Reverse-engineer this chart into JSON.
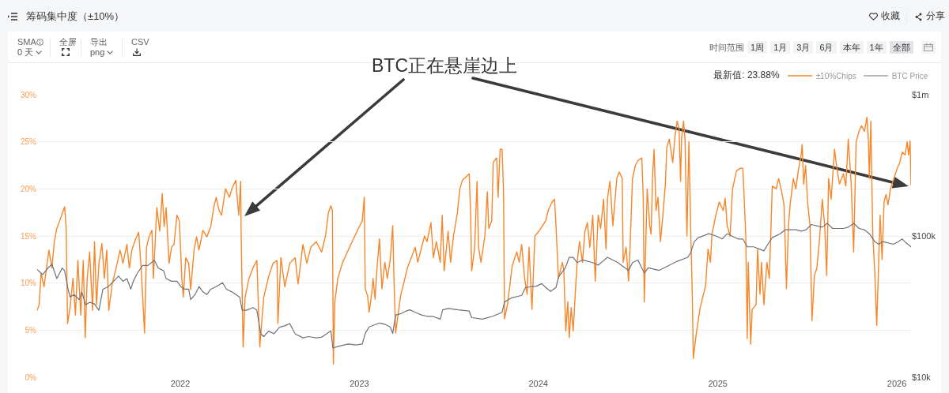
{
  "chart_data": {
    "type": "line",
    "title": "筹码集中度（±10%）",
    "annotations": [
      "BTC正在悬崖边上",
      "最新值: 23.88%",
      "SMA",
      "0 天",
      "全屏",
      "导出",
      "png",
      "CSV",
      "时间范围",
      "1周",
      "1月",
      "3月",
      "6月",
      "本年",
      "1年",
      "全部",
      "收藏",
      "分享"
    ],
    "xlim": [
      "2021-03-15",
      "2026-01-30"
    ],
    "xticks": [
      {
        "value": "2022-01-01",
        "label": "2022"
      },
      {
        "value": "2023-01-01",
        "label": "2023"
      },
      {
        "value": "2024-01-01",
        "label": "2024"
      },
      {
        "value": "2025-01-01",
        "label": "2025"
      },
      {
        "value": "2026-01-01",
        "label": "2026"
      }
    ],
    "ylim": [
      0,
      30
    ],
    "yticks": [
      {
        "value": 0,
        "label": "0%"
      },
      {
        "value": 5,
        "label": "5%"
      },
      {
        "value": 10,
        "label": "10%"
      },
      {
        "value": 15,
        "label": "15%"
      },
      {
        "value": 20,
        "label": "20%"
      },
      {
        "value": 25,
        "label": "25%"
      },
      {
        "value": 30,
        "label": "30%"
      }
    ],
    "y2lim": [
      10000,
      1000000
    ],
    "y2ticks": [
      {
        "value": 10000,
        "label": "$10k"
      },
      {
        "value": 100000,
        "label": "$100k"
      },
      {
        "value": 1000000,
        "label": "$1m"
      }
    ],
    "log": "y2",
    "grid": "y",
    "legend": "top right",
    "series": [
      {
        "name": "±10%Chips",
        "color": "#f5862a",
        "x": [
          "2021-03-15",
          "2021-03-19",
          "2021-03-23",
          "2021-03-29",
          "2021-04-03",
          "2021-04-08",
          "2021-04-14",
          "2021-04-19",
          "2021-04-24",
          "2021-05-02",
          "2021-05-10",
          "2021-05-13",
          "2021-05-16",
          "2021-05-21",
          "2021-05-27",
          "2021-06-01",
          "2021-06-06",
          "2021-06-12",
          "2021-06-17",
          "2021-06-21",
          "2021-06-25",
          "2021-06-30",
          "2021-07-06",
          "2021-07-10",
          "2021-07-14",
          "2021-07-19",
          "2021-07-25",
          "2021-07-30",
          "2021-08-04",
          "2021-08-08",
          "2021-08-15",
          "2021-08-23",
          "2021-08-31",
          "2021-09-06",
          "2021-09-14",
          "2021-09-19",
          "2021-09-24",
          "2021-10-02",
          "2021-10-08",
          "2021-10-13",
          "2021-10-20",
          "2021-10-24",
          "2021-10-29",
          "2021-11-04",
          "2021-11-07",
          "2021-11-14",
          "2021-11-20",
          "2021-11-25",
          "2021-11-29",
          "2021-12-03",
          "2021-12-09",
          "2021-12-14",
          "2021-12-19",
          "2021-12-25",
          "2021-12-30",
          "2022-01-04",
          "2022-01-07",
          "2022-01-12",
          "2022-01-18",
          "2022-01-22",
          "2022-01-29",
          "2022-02-03",
          "2022-02-08",
          "2022-02-16",
          "2022-02-24",
          "2022-03-04",
          "2022-03-10",
          "2022-03-15",
          "2022-03-21",
          "2022-03-26",
          "2022-04-03",
          "2022-04-11",
          "2022-04-16",
          "2022-04-24",
          "2022-04-30",
          "2022-05-04",
          "2022-05-05",
          "2022-05-09",
          "2022-05-13",
          "2022-05-21",
          "2022-05-29",
          "2022-06-06",
          "2022-06-12",
          "2022-06-20",
          "2022-06-30",
          "2022-07-09",
          "2022-07-17",
          "2022-07-19",
          "2022-07-25",
          "2022-08-02",
          "2022-08-12",
          "2022-08-23",
          "2022-08-29",
          "2022-09-08",
          "2022-09-16",
          "2022-09-24",
          "2022-10-05",
          "2022-10-16",
          "2022-10-24",
          "2022-10-30",
          "2022-11-04",
          "2022-11-07",
          "2022-11-09",
          "2022-11-12",
          "2022-11-18",
          "2022-11-28",
          "2022-12-12",
          "2022-12-30",
          "2023-01-07",
          "2023-01-11",
          "2023-01-13",
          "2023-01-18",
          "2023-01-21",
          "2023-01-26",
          "2023-01-29",
          "2023-02-02",
          "2023-02-06",
          "2023-02-11",
          "2023-02-16",
          "2023-02-22",
          "2023-02-27",
          "2023-03-05",
          "2023-03-10",
          "2023-03-13",
          "2023-03-16",
          "2023-03-26",
          "2023-04-09",
          "2023-04-25",
          "2023-04-30",
          "2023-05-14",
          "2023-05-19",
          "2023-05-27",
          "2023-06-01",
          "2023-06-07",
          "2023-06-15",
          "2023-06-19",
          "2023-06-23",
          "2023-07-01",
          "2023-07-06",
          "2023-07-12",
          "2023-07-20",
          "2023-07-25",
          "2023-07-30",
          "2023-08-13",
          "2023-08-16",
          "2023-08-18",
          "2023-08-24",
          "2023-08-29",
          "2023-09-01",
          "2023-09-06",
          "2023-09-14",
          "2023-09-19",
          "2023-09-22",
          "2023-09-28",
          "2023-10-01",
          "2023-10-08",
          "2023-10-11",
          "2023-10-15",
          "2023-10-19",
          "2023-10-22",
          "2023-10-24",
          "2023-10-30",
          "2023-11-09",
          "2023-11-18",
          "2023-11-23",
          "2023-11-28",
          "2023-12-04",
          "2023-12-09",
          "2023-12-13",
          "2023-12-19",
          "2023-12-25",
          "2024-01-02",
          "2024-01-16",
          "2024-01-21",
          "2024-01-29",
          "2024-02-03",
          "2024-02-06",
          "2024-02-11",
          "2024-02-19",
          "2024-02-22",
          "2024-02-26",
          "2024-03-01",
          "2024-03-04",
          "2024-03-08",
          "2024-03-12",
          "2024-03-20",
          "2024-03-25",
          "2024-03-31",
          "2024-04-05",
          "2024-04-10",
          "2024-04-15",
          "2024-04-21",
          "2024-04-26",
          "2024-05-02",
          "2024-05-07",
          "2024-05-13",
          "2024-05-18",
          "2024-05-21",
          "2024-05-26",
          "2024-06-01",
          "2024-06-09",
          "2024-06-14",
          "2024-06-20",
          "2024-06-22",
          "2024-06-28",
          "2024-07-03",
          "2024-07-06",
          "2024-07-11",
          "2024-07-17",
          "2024-07-22",
          "2024-07-30",
          "2024-08-02",
          "2024-08-04",
          "2024-08-10",
          "2024-08-15",
          "2024-08-18",
          "2024-08-21",
          "2024-08-24",
          "2024-08-28",
          "2024-09-01",
          "2024-09-06",
          "2024-09-11",
          "2024-09-16",
          "2024-09-19",
          "2024-09-24",
          "2024-10-01",
          "2024-10-06",
          "2024-10-10",
          "2024-10-14",
          "2024-10-17",
          "2024-10-19",
          "2024-10-23",
          "2024-10-26",
          "2024-10-30",
          "2024-11-03",
          "2024-11-07",
          "2024-11-10",
          "2024-11-12",
          "2024-11-18",
          "2024-11-26",
          "2024-12-07",
          "2024-12-12",
          "2024-12-17",
          "2024-12-20",
          "2024-12-28",
          "2025-01-04",
          "2025-01-12",
          "2025-01-16",
          "2025-01-20",
          "2025-01-26",
          "2025-01-31",
          "2025-02-08",
          "2025-02-16",
          "2025-02-21",
          "2025-02-27",
          "2025-03-02",
          "2025-03-04",
          "2025-03-09",
          "2025-03-12",
          "2025-03-20",
          "2025-03-23",
          "2025-03-28",
          "2025-03-31",
          "2025-04-05",
          "2025-04-11",
          "2025-04-16",
          "2025-04-19",
          "2025-04-22",
          "2025-04-30",
          "2025-05-05",
          "2025-05-10",
          "2025-05-16",
          "2025-05-21",
          "2025-05-25",
          "2025-05-29",
          "2025-06-04",
          "2025-06-09",
          "2025-06-14",
          "2025-06-20",
          "2025-06-22",
          "2025-06-25",
          "2025-06-29",
          "2025-07-03",
          "2025-07-08",
          "2025-07-12",
          "2025-07-17",
          "2025-07-22",
          "2025-07-27",
          "2025-08-02",
          "2025-08-07",
          "2025-08-11",
          "2025-08-15",
          "2025-08-20",
          "2025-08-27",
          "2025-08-31",
          "2025-09-06",
          "2025-09-14",
          "2025-09-19",
          "2025-09-24",
          "2025-09-30",
          "2025-10-05",
          "2025-10-10",
          "2025-10-16",
          "2025-10-21",
          "2025-10-27",
          "2025-11-01",
          "2025-11-04",
          "2025-11-06",
          "2025-11-09",
          "2025-11-13",
          "2025-11-17",
          "2025-11-21",
          "2025-11-25",
          "2025-11-28",
          "2025-12-02",
          "2025-12-06",
          "2025-12-10",
          "2025-12-14",
          "2025-12-19",
          "2026-01-02",
          "2026-01-07",
          "2026-01-12",
          "2026-01-18",
          "2026-01-22",
          "2026-01-25",
          "2026-01-28",
          "2026-01-30"
        ],
        "values": [
          7.1,
          7.7,
          11.0,
          9.6,
          11.6,
          13.5,
          11.6,
          14.4,
          15.8,
          16.9,
          18.1,
          16.0,
          5.7,
          7.4,
          10.5,
          6.6,
          12.4,
          6.6,
          12.4,
          4.2,
          10.5,
          13.3,
          7.1,
          14.4,
          7.7,
          12.1,
          14.2,
          10.5,
          13.5,
          7.1,
          9.9,
          11.6,
          13.5,
          12.1,
          14.1,
          11.6,
          13.5,
          14.7,
          15.4,
          11.6,
          4.7,
          13.8,
          14.9,
          15.6,
          10.5,
          18.0,
          15.5,
          19.5,
          16.0,
          18.0,
          12.1,
          13.8,
          14.1,
          17.2,
          16.6,
          10.5,
          8.5,
          12.7,
          12.1,
          9.3,
          13.5,
          14.9,
          13.5,
          15.6,
          14.9,
          16.0,
          18.0,
          19.1,
          17.7,
          17.2,
          20.0,
          19.1,
          20.0,
          20.9,
          17.2,
          20.8,
          14.9,
          3.2,
          8.5,
          10.5,
          11.6,
          12.4,
          3.2,
          8.5,
          10.7,
          12.1,
          12.4,
          5.7,
          12.7,
          9.6,
          12.1,
          12.7,
          9.9,
          14.1,
          12.1,
          13.8,
          14.4,
          13.3,
          15.0,
          17.5,
          18.2,
          17.7,
          1.4,
          8.0,
          10.5,
          12.2,
          13.8,
          15.8,
          16.6,
          19.1,
          9.4,
          8.6,
          6.9,
          8.8,
          10.5,
          8.3,
          11.6,
          14.7,
          9.4,
          12.2,
          10.5,
          12.5,
          16.1,
          9.7,
          4.7,
          8.6,
          11.6,
          13.8,
          12.2,
          15.0,
          14.4,
          16.4,
          12.7,
          14.4,
          12.2,
          17.2,
          11.3,
          15.5,
          12.2,
          15.0,
          17.5,
          20.0,
          20.9,
          21.6,
          17.2,
          11.3,
          13.6,
          20.8,
          13.8,
          12.2,
          15.0,
          19.7,
          15.8,
          16.6,
          22.8,
          23.3,
          19.1,
          24.2,
          24.2,
          19.7,
          6.2,
          7.7,
          11.9,
          13.3,
          12.2,
          14.1,
          10.5,
          8.8,
          13.8,
          7.2,
          15.0,
          15.5,
          16.6,
          17.7,
          18.6,
          18.9,
          16.1,
          10.5,
          12.2,
          11.3,
          4.9,
          8.0,
          4.2,
          7.4,
          4.9,
          12.2,
          14.4,
          12.2,
          15.5,
          16.4,
          13.8,
          17.2,
          10.2,
          17.2,
          15.8,
          18.9,
          13.6,
          19.0,
          20.8,
          16.1,
          21.1,
          21.8,
          21.1,
          12.2,
          13.8,
          10.2,
          13.8,
          21.1,
          22.5,
          23.0,
          23.3,
          18.9,
          8.0,
          20.0,
          16.1,
          15.2,
          21.4,
          24.2,
          17.7,
          19.1,
          14.4,
          17.2,
          20.5,
          24.4,
          25.3,
          22.8,
          25.7,
          27.2,
          26.4,
          20.8,
          25.3,
          27.2,
          25.3,
          15.0,
          25.0,
          15.0,
          8.6,
          2.0,
          4.6,
          7.4,
          9.7,
          13.6,
          12.2,
          15.2,
          17.2,
          18.6,
          17.7,
          19.0,
          16.1,
          15.0,
          20.0,
          21.9,
          22.2,
          22.2,
          15.0,
          4.1,
          12.2,
          3.5,
          7.2,
          7.7,
          13.6,
          8.8,
          12.2,
          7.7,
          12.2,
          10.5,
          15.2,
          20.3,
          20.0,
          21.1,
          20.0,
          18.3,
          9.4,
          16.1,
          18.6,
          21.1,
          20.0,
          21.9,
          23.6,
          24.7,
          20.5,
          22.5,
          18.6,
          16.1,
          6.0,
          10.8,
          11.6,
          14.4,
          18.9,
          16.1,
          10.8,
          21.1,
          18.9,
          24.2,
          22.5,
          20.5,
          21.6,
          20.3,
          25.3,
          20.5,
          13.3,
          25.0,
          26.1,
          26.7,
          26.1,
          27.6,
          25.3,
          21.1,
          27.2,
          15.0,
          11.3,
          5.5,
          12.2,
          17.2,
          12.5,
          18.6,
          19.4,
          18.3,
          20.0,
          22.2,
          22.8,
          23.9,
          23.6,
          25.0,
          23.6,
          25.1,
          20.4
        ]
      },
      {
        "name": "BTC Price",
        "color": "#6e7179",
        "axis": "y2",
        "x": [
          "2021-03-15",
          "2021-03-26",
          "2021-04-06",
          "2021-04-14",
          "2021-04-24",
          "2021-05-05",
          "2021-05-10",
          "2021-05-17",
          "2021-05-21",
          "2021-05-29",
          "2021-06-09",
          "2021-06-14",
          "2021-06-22",
          "2021-06-30",
          "2021-07-09",
          "2021-07-19",
          "2021-07-27",
          "2021-08-07",
          "2021-08-18",
          "2021-08-28",
          "2021-09-06",
          "2021-09-14",
          "2021-09-22",
          "2021-09-27",
          "2021-10-05",
          "2021-10-16",
          "2021-10-27",
          "2021-11-09",
          "2021-11-17",
          "2021-11-28",
          "2021-12-03",
          "2021-12-14",
          "2021-12-25",
          "2022-01-02",
          "2022-01-10",
          "2022-01-18",
          "2022-01-22",
          "2022-01-31",
          "2022-02-08",
          "2022-02-16",
          "2022-02-24",
          "2022-03-04",
          "2022-03-15",
          "2022-03-28",
          "2022-04-05",
          "2022-04-16",
          "2022-05-02",
          "2022-05-07",
          "2022-05-16",
          "2022-05-29",
          "2022-06-06",
          "2022-06-14",
          "2022-06-20",
          "2022-06-30",
          "2022-07-11",
          "2022-07-22",
          "2022-08-02",
          "2022-08-12",
          "2022-08-23",
          "2022-09-08",
          "2022-09-19",
          "2022-10-05",
          "2022-10-16",
          "2022-11-04",
          "2022-11-08",
          "2022-11-18",
          "2022-12-09",
          "2022-12-25",
          "2023-01-07",
          "2023-01-13",
          "2023-01-21",
          "2023-02-11",
          "2023-02-22",
          "2023-03-05",
          "2023-03-10",
          "2023-03-16",
          "2023-03-26",
          "2023-04-06",
          "2023-04-14",
          "2023-04-25",
          "2023-05-08",
          "2023-05-19",
          "2023-05-30",
          "2023-06-15",
          "2023-06-20",
          "2023-07-01",
          "2023-07-22",
          "2023-08-13",
          "2023-08-18",
          "2023-09-09",
          "2023-09-30",
          "2023-10-19",
          "2023-10-24",
          "2023-11-07",
          "2023-11-28",
          "2023-12-06",
          "2023-12-28",
          "2024-01-08",
          "2024-01-16",
          "2024-01-26",
          "2024-02-06",
          "2024-02-11",
          "2024-02-25",
          "2024-03-04",
          "2024-03-12",
          "2024-03-20",
          "2024-03-31",
          "2024-04-21",
          "2024-05-02",
          "2024-05-21",
          "2024-06-11",
          "2024-07-03",
          "2024-07-11",
          "2024-07-22",
          "2024-08-04",
          "2024-08-12",
          "2024-09-03",
          "2024-09-19",
          "2024-10-10",
          "2024-11-01",
          "2024-11-07",
          "2024-11-14",
          "2024-11-22",
          "2024-12-14",
          "2024-12-30",
          "2025-01-10",
          "2025-01-20",
          "2025-02-11",
          "2025-02-21",
          "2025-03-02",
          "2025-03-15",
          "2025-04-05",
          "2025-04-13",
          "2025-04-22",
          "2025-05-08",
          "2025-05-18",
          "2025-06-09",
          "2025-06-20",
          "2025-06-30",
          "2025-07-11",
          "2025-08-02",
          "2025-08-12",
          "2025-08-23",
          "2025-09-14",
          "2025-09-24",
          "2025-10-05",
          "2025-10-16",
          "2025-10-27",
          "2025-11-06",
          "2025-11-17",
          "2025-11-25",
          "2025-12-03",
          "2025-12-25",
          "2026-01-04",
          "2026-01-12",
          "2026-01-20",
          "2026-01-30"
        ],
        "values": [
          57900,
          53200,
          59200,
          63100,
          49900,
          59200,
          56700,
          42000,
          36900,
          38500,
          35400,
          40200,
          32500,
          33900,
          33200,
          29800,
          42000,
          43800,
          47800,
          52000,
          47800,
          49900,
          42000,
          47800,
          54300,
          61800,
          61800,
          67300,
          59200,
          56700,
          49900,
          47800,
          47800,
          43800,
          42000,
          42000,
          35400,
          38500,
          43800,
          40200,
          38500,
          42000,
          43800,
          46700,
          42000,
          40200,
          36900,
          29800,
          29800,
          31100,
          29800,
          20300,
          19400,
          21200,
          20300,
          22600,
          23100,
          24000,
          20300,
          19000,
          19400,
          19000,
          19200,
          21300,
          16100,
          16500,
          17200,
          16900,
          17200,
          20400,
          22700,
          24200,
          23700,
          22700,
          20400,
          27600,
          28100,
          29400,
          30000,
          28800,
          27600,
          27000,
          27000,
          25800,
          30000,
          30700,
          30000,
          29400,
          26400,
          25800,
          27000,
          28800,
          34100,
          36400,
          38000,
          43200,
          44100,
          46000,
          43200,
          40500,
          43200,
          51200,
          59500,
          70600,
          70600,
          64800,
          67600,
          64800,
          62100,
          70600,
          64800,
          57000,
          64800,
          67600,
          54600,
          59500,
          57000,
          60800,
          66200,
          70600,
          76900,
          91200,
          97300,
          103700,
          99400,
          95200,
          103700,
          95200,
          95200,
          83800,
          83800,
          78500,
          87400,
          97300,
          103700,
          110600,
          110600,
          108200,
          110600,
          120500,
          115400,
          123000,
          113000,
          113000,
          115400,
          123000,
          113000,
          110600,
          103700,
          91200,
          87400,
          91200,
          87400,
          91200,
          95200,
          89300,
          83800
        ]
      }
    ]
  }
}
